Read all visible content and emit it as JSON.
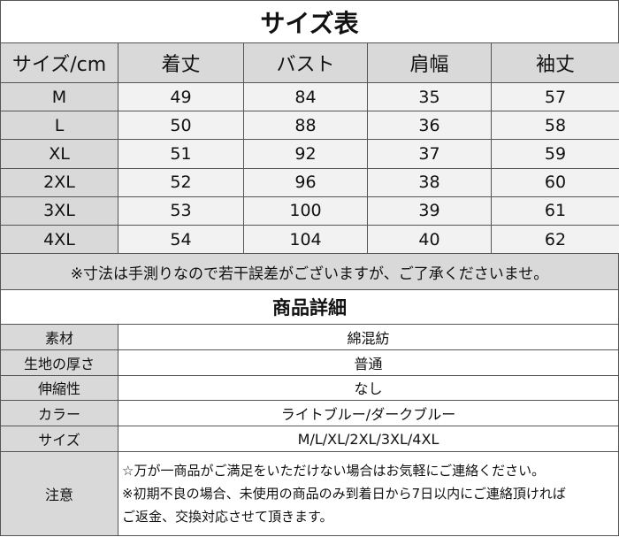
{
  "title": "サイズ表",
  "size_table": {
    "header": [
      "サイズ/cm",
      "着丈",
      "バスト",
      "肩幅",
      "袖丈"
    ],
    "rows": [
      [
        "M",
        49,
        84,
        35,
        57
      ],
      [
        "L",
        50,
        88,
        36,
        58
      ],
      [
        "XL",
        51,
        92,
        37,
        59
      ],
      [
        "2XL",
        52,
        96,
        38,
        60
      ],
      [
        "3XL",
        53,
        100,
        39,
        61
      ],
      [
        "4XL",
        54,
        104,
        40,
        62
      ]
    ]
  },
  "note": "※寸法は手測りなので若干誤差がございますが、ご了承くださいませ。",
  "details_title": "商品詳細",
  "details": [
    {
      "label": "素材",
      "value": "綿混紡"
    },
    {
      "label": "生地の厚さ",
      "value": "普通"
    },
    {
      "label": "伸縮性",
      "value": "なし"
    },
    {
      "label": "カラー",
      "value": "ライトブルー/ダークブルー"
    },
    {
      "label": "サイズ",
      "value": "M/L/XL/2XL/3XL/4XL"
    }
  ],
  "notice": {
    "label": "注意",
    "lines": [
      "☆万が一商品がご満足をいただけない場合はお気軽にご連絡ください。",
      "※初期不良の場合、未使用の商品のみ到着日から7日以内にご連絡頂ければ",
      "ご返金、交換対応させて頂きます。"
    ]
  }
}
